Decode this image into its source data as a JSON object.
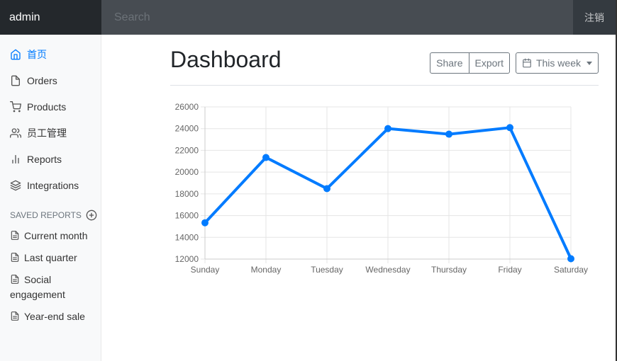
{
  "navbar": {
    "brand": "admin",
    "search_placeholder": "Search",
    "signout_label": "注销"
  },
  "sidebar": {
    "items": [
      {
        "label": "首页",
        "icon": "home-icon",
        "active": true
      },
      {
        "label": "Orders",
        "icon": "file-icon",
        "active": false
      },
      {
        "label": "Products",
        "icon": "shopping-cart-icon",
        "active": false
      },
      {
        "label": "员工管理",
        "icon": "users-icon",
        "active": false
      },
      {
        "label": "Reports",
        "icon": "bar-chart-icon",
        "active": false
      },
      {
        "label": "Integrations",
        "icon": "layers-icon",
        "active": false
      }
    ],
    "saved_heading": "SAVED REPORTS",
    "saved_reports": [
      {
        "label": "Current month"
      },
      {
        "label": "Last quarter"
      },
      {
        "label": "Social engagement"
      },
      {
        "label": "Year-end sale"
      }
    ]
  },
  "main": {
    "title": "Dashboard",
    "share_label": "Share",
    "export_label": "Export",
    "period_label": "This week"
  },
  "colors": {
    "accent": "#007bff",
    "navbar": "#343a40"
  },
  "chart_data": {
    "type": "line",
    "categories": [
      "Sunday",
      "Monday",
      "Tuesday",
      "Wednesday",
      "Thursday",
      "Friday",
      "Saturday"
    ],
    "values": [
      15339,
      21345,
      18483,
      24003,
      23489,
      24092,
      12034
    ],
    "ylim": [
      12000,
      26000
    ],
    "yticks": [
      12000,
      14000,
      16000,
      18000,
      20000,
      22000,
      24000,
      26000
    ],
    "grid": true,
    "color": "#007bff",
    "title": "",
    "xlabel": "",
    "ylabel": ""
  }
}
